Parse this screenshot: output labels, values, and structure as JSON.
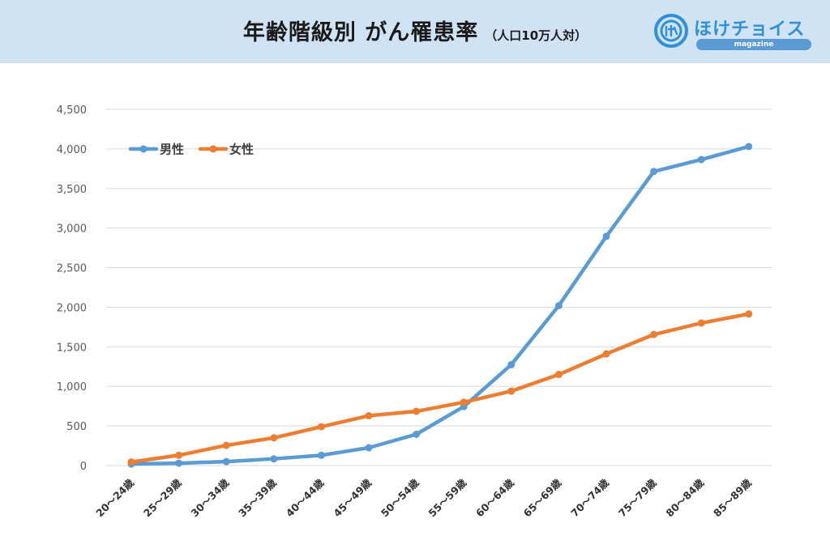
{
  "header": {
    "title": "年齢階級別 がん罹患率",
    "subtitle": "（人口10万人対）",
    "logo_text": "ほけチョイス",
    "logo_sub": "magazine",
    "logo_icon": "hoke-logo-icon"
  },
  "colors": {
    "male": "#5b9bd5",
    "female": "#ed7d31",
    "header_bg": "#cfe3f4"
  },
  "chart_data": {
    "type": "line",
    "title": "年齢階級別 がん罹患率",
    "subtitle": "（人口10万人対）",
    "categories": [
      "20～24歳",
      "25～29歳",
      "30～34歳",
      "35～39歳",
      "40～44歳",
      "45～49歳",
      "50～54歳",
      "55～59歳",
      "60～64歳",
      "65～69歳",
      "70～74歳",
      "75～79歳",
      "80～84歳",
      "85～89歳"
    ],
    "series": [
      {
        "name": "男性",
        "values": [
          20,
          30,
          50,
          85,
          130,
          225,
          395,
          745,
          1275,
          2020,
          2895,
          3715,
          3865,
          4030
        ]
      },
      {
        "name": "女性",
        "values": [
          45,
          130,
          255,
          350,
          490,
          630,
          685,
          800,
          940,
          1150,
          1410,
          1655,
          1800,
          1915
        ]
      }
    ],
    "yticks": [
      "0",
      "500",
      "1,000",
      "1,500",
      "2,000",
      "2,500",
      "3,000",
      "3,500",
      "4,000",
      "4,500"
    ],
    "ylim": [
      0,
      4500
    ],
    "grid": true,
    "legend": "top-left"
  }
}
